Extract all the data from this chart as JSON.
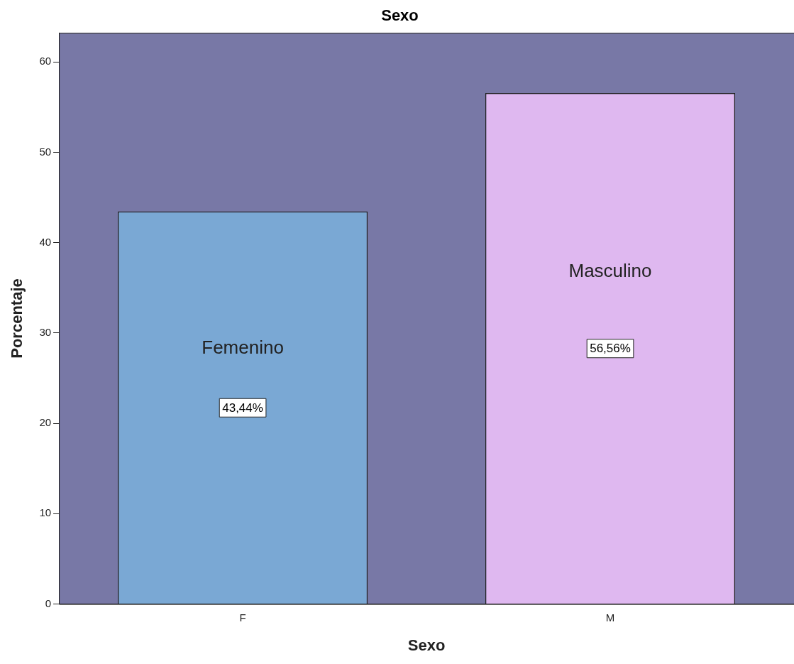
{
  "chart_data": {
    "type": "bar",
    "title": "Sexo",
    "xlabel": "Sexo",
    "ylabel": "Porcentaje",
    "categories": [
      "F",
      "M"
    ],
    "values": [
      43.44,
      56.56
    ],
    "colors": [
      "#7aa8d4",
      "#dfb8f0"
    ],
    "value_labels": [
      "43,44%",
      "56,56%"
    ],
    "annotations": [
      "Femenino",
      "Masculino"
    ],
    "ylim": [
      0,
      63.2
    ],
    "yticks": [
      0,
      10,
      20,
      30,
      40,
      50,
      60
    ],
    "grid": false,
    "legend": false
  }
}
